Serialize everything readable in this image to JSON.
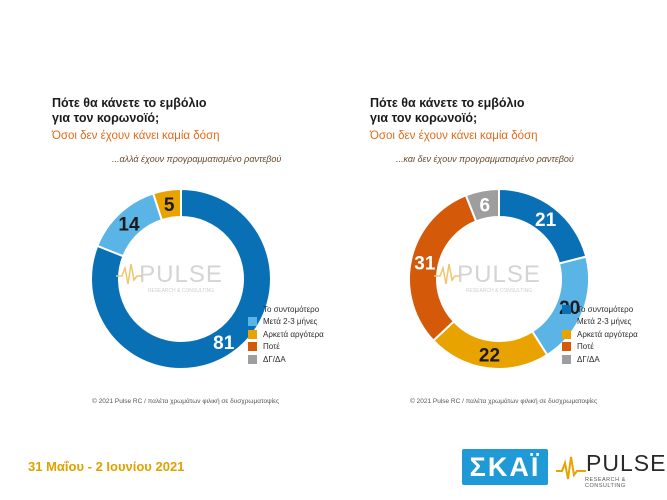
{
  "chart_data": [
    {
      "type": "donut",
      "title_line1": "Πότε θα κάνετε το εμβόλιο",
      "title_line2": "για τον κορωνοϊό;",
      "subtitle": "Όσοι δεν έχουν κάνει καμία δόση",
      "note": "...αλλά έχουν προγραμματισμένο ραντεβού",
      "categories": [
        "Το συντομότερο",
        "Μετά 2-3 μήνες",
        "Αρκετά αργότερα",
        "Ποτέ",
        "ΔΓ/ΔΑ"
      ],
      "values": [
        81,
        14,
        5,
        0,
        0
      ],
      "labels": [
        "81",
        "14",
        "5",
        "",
        ""
      ],
      "colors": [
        "#0a70b6",
        "#5ab4e6",
        "#e9a300",
        "#d45a0a",
        "#9e9e9e"
      ],
      "legend": "right",
      "footnote": "© 2021 Pulse RC  /  παλέτα χρωμάτων φιλική σε δυσχρωματοψίες"
    },
    {
      "type": "donut",
      "title_line1": "Πότε θα κάνετε το εμβόλιο",
      "title_line2": "για τον κορωνοϊό;",
      "subtitle": "Όσοι δεν έχουν κάνει καμία δόση",
      "note": "...και δεν έχουν προγραμματισμένο ραντεβού",
      "categories": [
        "Το συντομότερο",
        "Μετά 2-3 μήνες",
        "Αρκετά αργότερα",
        "Ποτέ",
        "ΔΓ/ΔΑ"
      ],
      "values": [
        21,
        20,
        22,
        31,
        6
      ],
      "labels": [
        "21",
        "20",
        "22",
        "31",
        "6"
      ],
      "colors": [
        "#0a70b6",
        "#5ab4e6",
        "#e9a300",
        "#d45a0a",
        "#9e9e9e"
      ],
      "legend": "right",
      "footnote": "© 2021 Pulse RC  /  παλέτα χρωμάτων φιλική σε δυσχρωματοψίες"
    }
  ],
  "watermark": {
    "word": "PULSE",
    "tag": "RESEARCH & CONSULTING"
  },
  "footer": {
    "date": "31 Μαΐου - 2 Ιουνίου 2021",
    "skai_logo": "ΣΚΑΪ",
    "pulse_logo_word": "PULSE",
    "pulse_logo_tag": "RESEARCH & CONSULTING",
    "skai_color": "#1f9ad6",
    "date_color": "#e0a100"
  }
}
